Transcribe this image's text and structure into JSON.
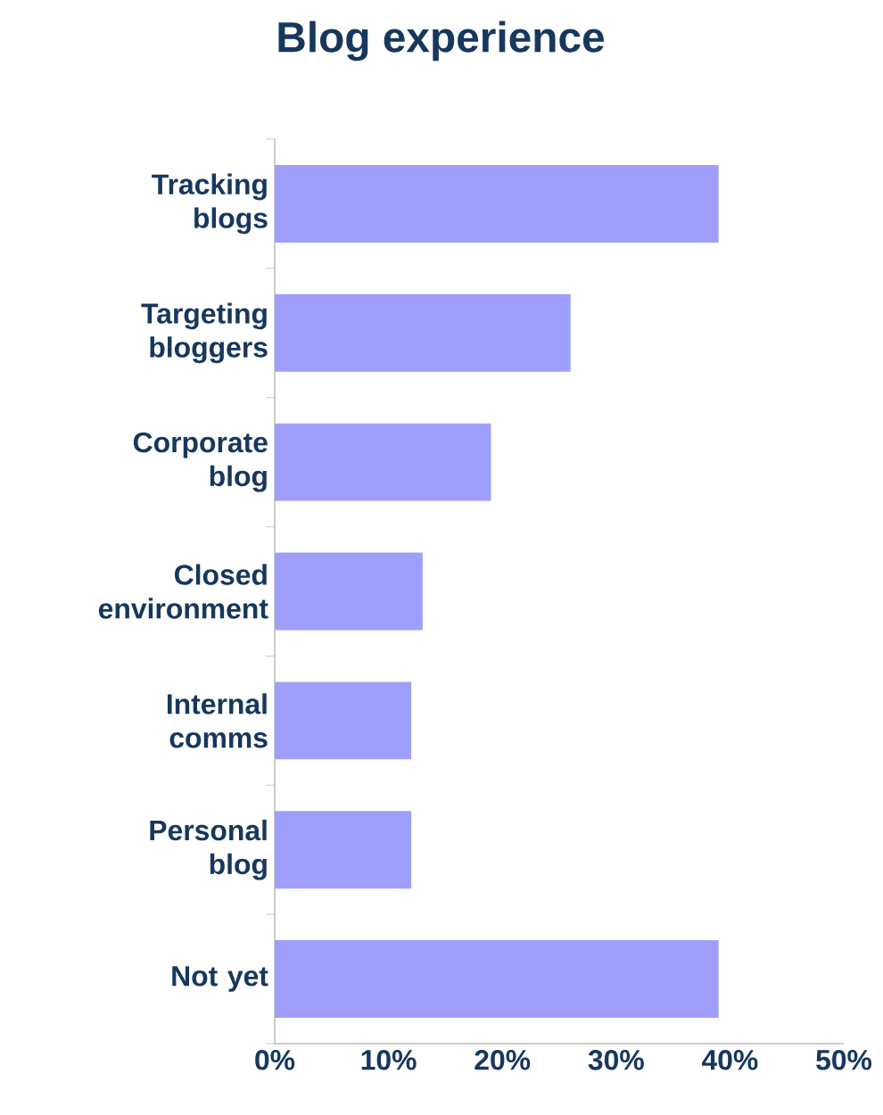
{
  "chart_data": {
    "type": "bar",
    "orientation": "horizontal",
    "title": "Blog experience",
    "categories": [
      "Tracking blogs",
      "Targeting bloggers",
      "Corporate blog",
      "Closed environment",
      "Internal comms",
      "Personal blog",
      "Not yet"
    ],
    "values": [
      39,
      26,
      19,
      13,
      12,
      12,
      39
    ],
    "color": "#9f9ffb",
    "xlim": [
      0,
      50
    ],
    "xticks": [
      {
        "value": 0,
        "label": "0%"
      },
      {
        "value": 10,
        "label": "10%"
      },
      {
        "value": 20,
        "label": "20%"
      },
      {
        "value": 30,
        "label": "30%"
      },
      {
        "value": 40,
        "label": "40%"
      },
      {
        "value": 50,
        "label": "50%"
      }
    ],
    "grid": false
  }
}
